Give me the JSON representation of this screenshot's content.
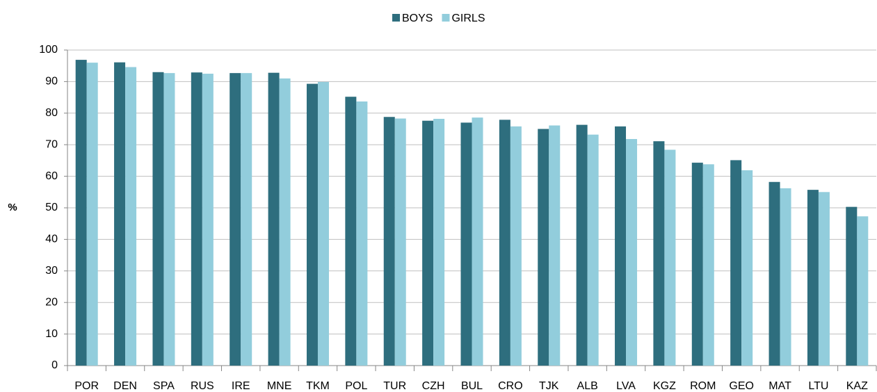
{
  "chart_data": {
    "type": "bar",
    "categories": [
      "POR",
      "DEN",
      "SPA",
      "RUS",
      "IRE",
      "MNE",
      "TKM",
      "POL",
      "TUR",
      "CZH",
      "BUL",
      "CRO",
      "TJK",
      "ALB",
      "LVA",
      "KGZ",
      "ROM",
      "GEO",
      "MAT",
      "LTU",
      "KAZ"
    ],
    "series": [
      {
        "name": "BOYS",
        "color": "#2e6e7e",
        "values": [
          96.9,
          96.1,
          93.0,
          92.9,
          92.7,
          92.8,
          89.3,
          85.2,
          78.8,
          77.6,
          77.0,
          77.9,
          75.0,
          76.3,
          75.8,
          71.1,
          64.3,
          65.1,
          58.2,
          55.7,
          50.3
        ]
      },
      {
        "name": "GIRLS",
        "color": "#92cddc",
        "values": [
          96.0,
          94.6,
          92.7,
          92.5,
          92.7,
          91.0,
          89.9,
          83.7,
          78.3,
          78.2,
          78.6,
          75.8,
          76.1,
          73.2,
          71.8,
          68.4,
          63.8,
          61.9,
          56.2,
          55.0,
          47.3
        ]
      }
    ],
    "ylabel": "%",
    "ylim": [
      0,
      100
    ],
    "yticks": [
      0,
      10,
      20,
      30,
      40,
      50,
      60,
      70,
      80,
      90,
      100
    ],
    "grid": true,
    "legend": "top"
  }
}
